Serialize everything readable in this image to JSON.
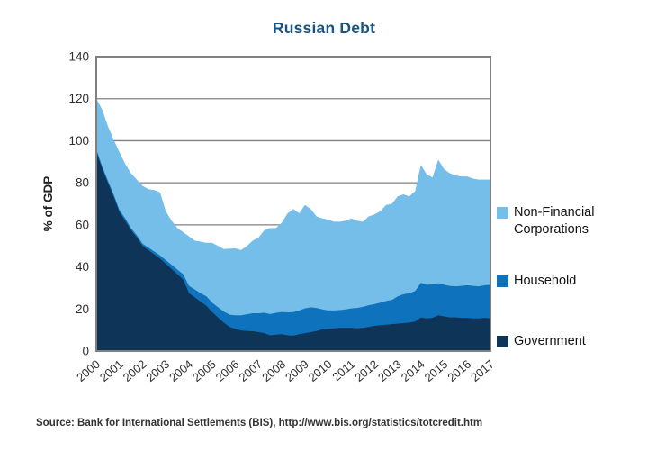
{
  "title": "Russian Debt",
  "source_note": "Source: Bank for International Settlements (BIS), http://www.bis.org/statistics/totcredit.htm",
  "colors": {
    "title": "#1a5480",
    "government": "#0e3557",
    "household": "#0f72bc",
    "nonfinancial": "#74bee9",
    "gridline": "#808080",
    "axis_text": "#2e2e2e"
  },
  "legend": [
    {
      "label": "Non-Financial Corporations",
      "color": "#74bee9"
    },
    {
      "label": "Household",
      "color": "#0f72bc"
    },
    {
      "label": "Government",
      "color": "#0e3557"
    }
  ],
  "chart_data": {
    "type": "area",
    "stacked": true,
    "title": "Russian Debt",
    "xlabel": "",
    "ylabel": "% of GDP",
    "ylim": [
      0,
      140
    ],
    "ytick_step": 20,
    "ytick_labels": [
      "0",
      "20",
      "40",
      "60",
      "80",
      "100",
      "120",
      "140"
    ],
    "grid": "horizontal",
    "legend_position": "right",
    "x_tick_labels": [
      "2000",
      "2001",
      "2002",
      "2003",
      "2004",
      "2005",
      "2006",
      "2007",
      "2008",
      "2009",
      "2010",
      "2011",
      "2012",
      "2013",
      "2014",
      "2015",
      "2016",
      "2017"
    ],
    "x_frequency": "quarterly",
    "series": [
      {
        "name": "Government",
        "color": "#0e3557",
        "values": [
          95,
          87,
          80,
          73.5,
          66,
          62,
          57.5,
          54,
          50,
          48,
          46,
          44,
          41.5,
          39,
          36.5,
          34,
          27.5,
          25.5,
          23.5,
          21.5,
          18.5,
          16,
          13.5,
          11.5,
          10.5,
          9.8,
          9.5,
          9.4,
          9,
          8.5,
          7.5,
          7.8,
          8,
          7.5,
          7.3,
          8,
          8.5,
          9,
          9.5,
          10.3,
          10.5,
          10.8,
          11,
          11,
          11,
          10.8,
          11,
          11.5,
          12,
          12.3,
          12.5,
          12.8,
          13,
          13.3,
          13.5,
          14,
          16,
          15.5,
          15.8,
          17,
          16.5,
          16,
          16,
          15.8,
          15.8,
          15.5,
          15.5,
          15.8,
          15.5
        ]
      },
      {
        "name": "Household",
        "color": "#0f72bc",
        "values": [
          1,
          1,
          1,
          1,
          1,
          1,
          1,
          1,
          1,
          1.2,
          1.3,
          1.5,
          1.7,
          2,
          2.2,
          2.5,
          3.5,
          3.8,
          4,
          4.5,
          4.5,
          4.8,
          5.3,
          5.8,
          6.5,
          7.2,
          8,
          8.6,
          9,
          9.7,
          10.1,
          10.4,
          10.6,
          10.9,
          11.2,
          11.3,
          11.8,
          11.8,
          11,
          9.5,
          8.8,
          8.5,
          8.5,
          8.8,
          9.3,
          9.7,
          10,
          10.3,
          10.3,
          10.7,
          11.3,
          11.5,
          13,
          13.7,
          14,
          14.5,
          16.5,
          16,
          16,
          15.3,
          15,
          15,
          14.8,
          15.2,
          15.5,
          15.5,
          15.3,
          15.5,
          16
        ]
      },
      {
        "name": "Non-Financial Corporations",
        "color": "#74bee9",
        "values": [
          24,
          27,
          26,
          26,
          27.5,
          26,
          26,
          26.5,
          27.5,
          27.8,
          29.2,
          30,
          23.3,
          21,
          19.8,
          20,
          23.5,
          23.2,
          24.5,
          25.5,
          28.5,
          29.2,
          29.7,
          31.4,
          31.8,
          31,
          32.5,
          34.5,
          36,
          39.3,
          40.9,
          40.3,
          42.4,
          47.1,
          49,
          46.2,
          49.2,
          46.7,
          43.5,
          43.2,
          43.2,
          42.2,
          42,
          42.2,
          42.7,
          41.5,
          40.5,
          42.2,
          42.7,
          43.5,
          45.7,
          45.7,
          47.5,
          47.5,
          46,
          47.5,
          56,
          52.5,
          50.7,
          58.7,
          55,
          53.5,
          52.7,
          52,
          51.7,
          51,
          50.7,
          50.2,
          50
        ]
      }
    ]
  }
}
